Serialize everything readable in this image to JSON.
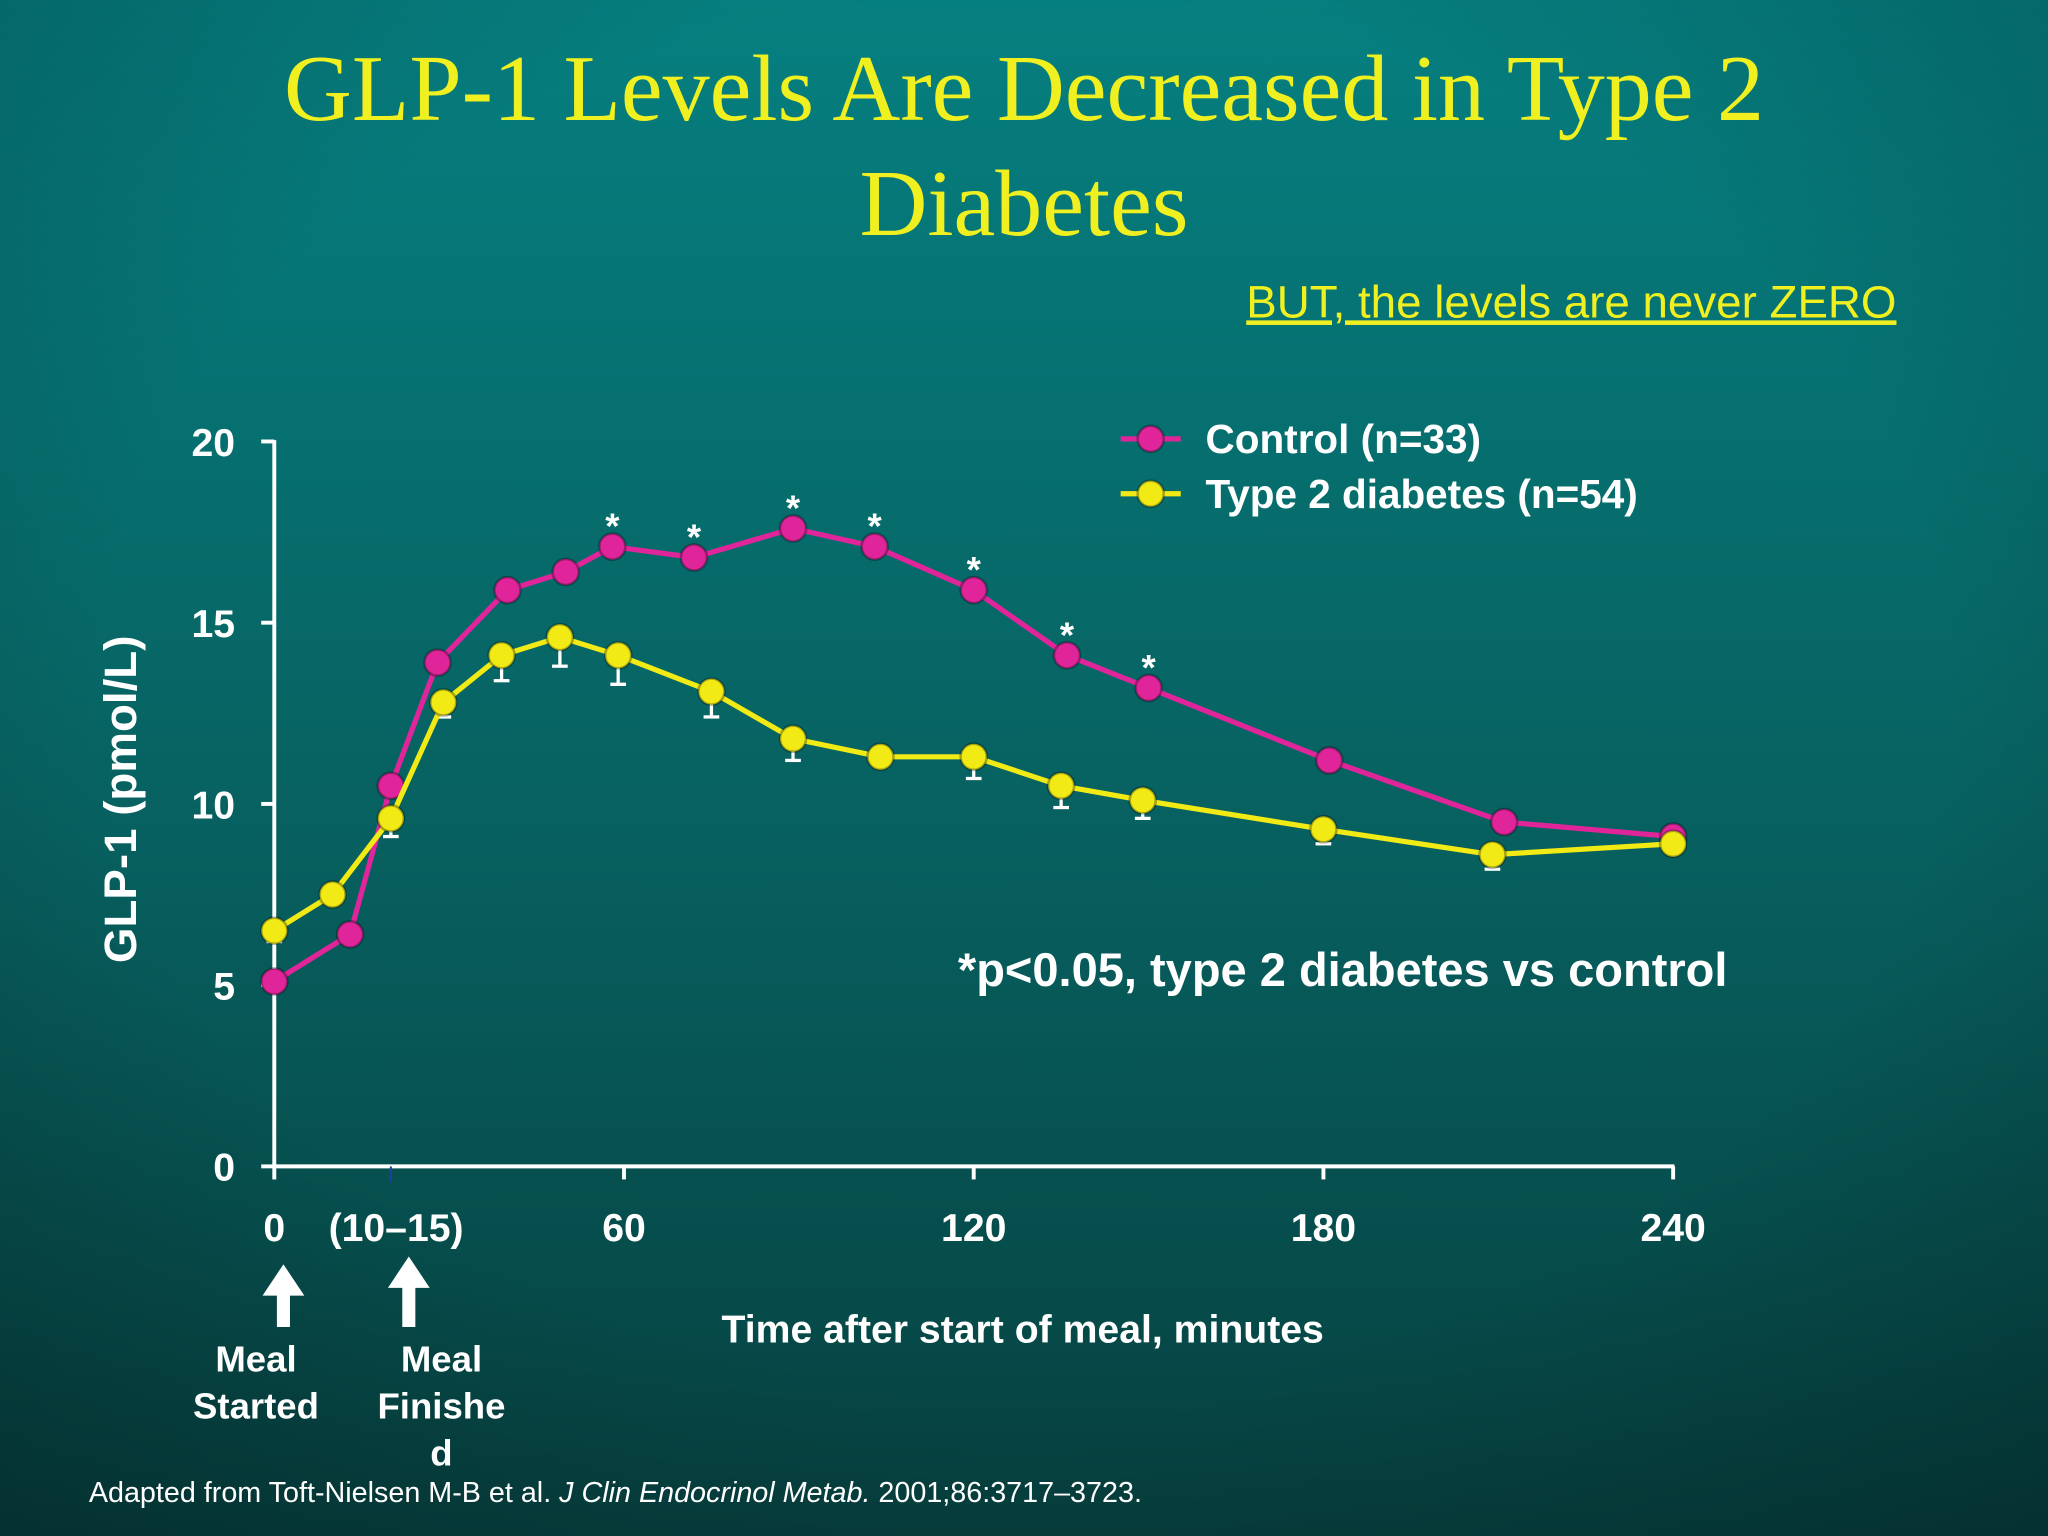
{
  "chart_data": {
    "type": "line",
    "title": [
      "GLP-1 Levels Are Decreased in Type 2",
      "Diabetes"
    ],
    "subtitle": "BUT, the levels are never ZERO",
    "y_label": "GLP-1 (pmol/L)",
    "x_label": "Time after start of meal, minutes",
    "note": "*p<0.05, type 2 diabetes vs control",
    "source": [
      "Adapted from Toft-Nielsen M-B et al. ",
      "J Clin Endocrinol Metab.",
      " 2001;86:3717–3723."
    ],
    "annotations": [
      {
        "lines": [
          "Meal",
          "Started"
        ]
      },
      {
        "lines": [
          "Meal",
          "Finishe",
          "d"
        ]
      }
    ],
    "xlim": [
      0,
      240
    ],
    "ylim": [
      0,
      20
    ],
    "xticks": [
      0,
      {
        "value": 20,
        "label": "(10–15)"
      },
      60,
      120,
      180,
      240
    ],
    "yticks": [
      0,
      5,
      10,
      15,
      20
    ],
    "series": [
      {
        "name": "Control (n=33)",
        "color": "#e0259a",
        "x": [
          0,
          13,
          20,
          28,
          40,
          50,
          58,
          72,
          89,
          103,
          120,
          136,
          150,
          181,
          211,
          240
        ],
        "values": [
          5.1,
          6.4,
          10.5,
          13.9,
          15.9,
          16.4,
          17.1,
          16.8,
          17.6,
          17.1,
          15.9,
          14.1,
          13.2,
          11.2,
          9.5,
          9.1
        ],
        "significance": {
          "marker": "*",
          "indices": [
            6,
            7,
            8,
            9,
            10,
            11,
            12
          ]
        }
      },
      {
        "name": "Type 2 diabetes (n=54)",
        "color": "#f2ea14",
        "x": [
          0,
          10,
          20,
          29,
          39,
          49,
          59,
          75,
          89,
          104,
          120,
          135,
          149,
          180,
          209,
          240
        ],
        "values": [
          6.5,
          7.5,
          9.6,
          12.8,
          14.1,
          14.6,
          14.1,
          13.1,
          11.8,
          11.3,
          11.3,
          10.5,
          10.1,
          9.3,
          8.6,
          8.9
        ],
        "errors": [
          0.3,
          null,
          0.5,
          0.4,
          0.7,
          0.8,
          0.8,
          0.7,
          0.6,
          null,
          0.6,
          0.6,
          0.5,
          0.4,
          0.4,
          null
        ]
      }
    ],
    "legend": "top-right"
  }
}
